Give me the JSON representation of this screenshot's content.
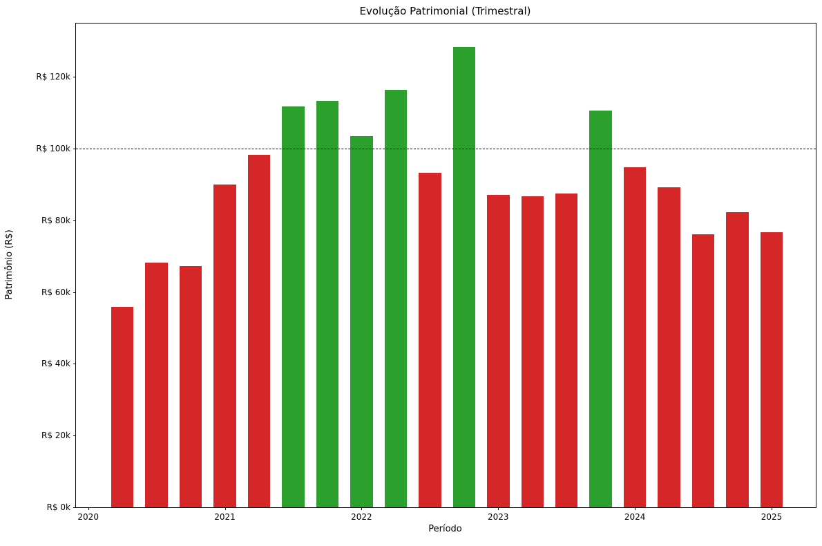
{
  "chart_data": {
    "type": "bar",
    "title": "Evolução Patrimonial (Trimestral)",
    "xlabel": "Período",
    "ylabel": "Patrimônio (R$)",
    "currency": "R$",
    "grid": false,
    "legend": "none",
    "xlim": [
      2019.9106,
      2025.3232
    ],
    "ylim": [
      0,
      134900
    ],
    "bar_width_x_units": 0.1642,
    "colors": {
      "above_threshold": "#2ca02c",
      "below_threshold": "#d62728",
      "reference_line": "#000000"
    },
    "reference_line": {
      "value": 100000,
      "style": "dashed",
      "color": "#000000"
    },
    "x_ticks": [
      {
        "x": 2020,
        "label": "2020"
      },
      {
        "x": 2021,
        "label": "2021"
      },
      {
        "x": 2022,
        "label": "2022"
      },
      {
        "x": 2023,
        "label": "2023"
      },
      {
        "x": 2024,
        "label": "2024"
      },
      {
        "x": 2025,
        "label": "2025"
      }
    ],
    "y_ticks": [
      {
        "value": 0,
        "label": "R$ 0k"
      },
      {
        "value": 20000,
        "label": "R$ 20k"
      },
      {
        "value": 40000,
        "label": "R$ 40k"
      },
      {
        "value": 60000,
        "label": "R$ 60k"
      },
      {
        "value": 80000,
        "label": "R$ 80k"
      },
      {
        "value": 100000,
        "label": "R$ 100k"
      },
      {
        "value": 120000,
        "label": "R$ 120k"
      }
    ],
    "bars": [
      {
        "period": "2020-Q2",
        "x": 2020.25,
        "value": 55800,
        "color": "#d62728"
      },
      {
        "period": "2020-Q3",
        "x": 2020.5,
        "value": 68300,
        "color": "#d62728"
      },
      {
        "period": "2020-Q4",
        "x": 2020.75,
        "value": 67200,
        "color": "#d62728"
      },
      {
        "period": "2021-Q1",
        "x": 2021.0,
        "value": 90000,
        "color": "#d62728"
      },
      {
        "period": "2021-Q2",
        "x": 2021.25,
        "value": 98300,
        "color": "#d62728"
      },
      {
        "period": "2021-Q3",
        "x": 2021.5,
        "value": 111800,
        "color": "#2ca02c"
      },
      {
        "period": "2021-Q4",
        "x": 2021.75,
        "value": 113400,
        "color": "#2ca02c"
      },
      {
        "period": "2022-Q1",
        "x": 2022.0,
        "value": 103500,
        "color": "#2ca02c"
      },
      {
        "period": "2022-Q2",
        "x": 2022.25,
        "value": 116400,
        "color": "#2ca02c"
      },
      {
        "period": "2022-Q3",
        "x": 2022.5,
        "value": 93300,
        "color": "#d62728"
      },
      {
        "period": "2022-Q4",
        "x": 2022.75,
        "value": 128400,
        "color": "#2ca02c"
      },
      {
        "period": "2023-Q1",
        "x": 2023.0,
        "value": 87100,
        "color": "#d62728"
      },
      {
        "period": "2023-Q2",
        "x": 2023.25,
        "value": 86800,
        "color": "#d62728"
      },
      {
        "period": "2023-Q3",
        "x": 2023.5,
        "value": 87400,
        "color": "#d62728"
      },
      {
        "period": "2023-Q4",
        "x": 2023.75,
        "value": 110700,
        "color": "#2ca02c"
      },
      {
        "period": "2024-Q1",
        "x": 2024.0,
        "value": 94800,
        "color": "#d62728"
      },
      {
        "period": "2024-Q2",
        "x": 2024.25,
        "value": 89300,
        "color": "#d62728"
      },
      {
        "period": "2024-Q3",
        "x": 2024.5,
        "value": 76200,
        "color": "#d62728"
      },
      {
        "period": "2024-Q4",
        "x": 2024.75,
        "value": 82300,
        "color": "#d62728"
      },
      {
        "period": "2025-Q1",
        "x": 2025.0,
        "value": 76700,
        "color": "#d62728"
      }
    ]
  }
}
